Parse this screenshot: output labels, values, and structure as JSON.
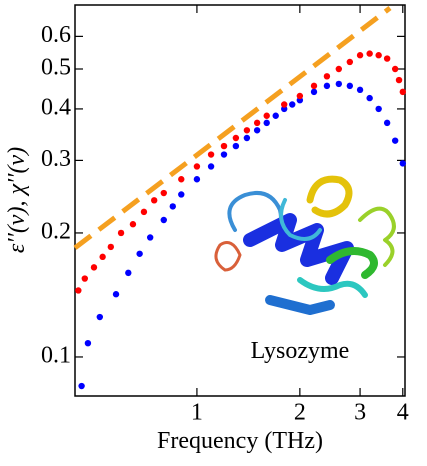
{
  "chart_data": {
    "type": "scatter",
    "x_label": "Frequency (THz)",
    "y_label": "ε′′(ν), χ′′(ν)",
    "annotation": "Lysozyme",
    "xscale": "log",
    "yscale": "log",
    "xlim": [
      0.44,
      4.06
    ],
    "ylim": [
      0.0804,
      0.715
    ],
    "xticks": [
      1,
      2,
      3,
      4
    ],
    "yticks": [
      0.1,
      0.2,
      0.3,
      0.4,
      0.5,
      0.6
    ],
    "series": [
      {
        "color": "#0000ff",
        "style": "points",
        "x": [
          0.46,
          0.48,
          0.52,
          0.58,
          0.63,
          0.68,
          0.73,
          0.8,
          0.85,
          0.9,
          1.0,
          1.1,
          1.2,
          1.3,
          1.4,
          1.5,
          1.6,
          1.7,
          1.8,
          1.9,
          2.0,
          2.2,
          2.4,
          2.6,
          2.8,
          3.0,
          3.2,
          3.4,
          3.6,
          3.8,
          4.0
        ],
        "values": [
          0.085,
          0.108,
          0.125,
          0.142,
          0.16,
          0.178,
          0.195,
          0.215,
          0.232,
          0.248,
          0.27,
          0.29,
          0.31,
          0.325,
          0.34,
          0.355,
          0.37,
          0.385,
          0.4,
          0.41,
          0.42,
          0.44,
          0.455,
          0.46,
          0.455,
          0.445,
          0.425,
          0.4,
          0.37,
          0.335,
          0.295
        ]
      },
      {
        "color": "#ff0000",
        "style": "points",
        "x": [
          0.45,
          0.47,
          0.5,
          0.53,
          0.56,
          0.6,
          0.65,
          0.7,
          0.75,
          0.8,
          0.9,
          1.0,
          1.1,
          1.2,
          1.3,
          1.4,
          1.5,
          1.6,
          1.8,
          2.0,
          2.2,
          2.4,
          2.6,
          2.8,
          3.0,
          3.2,
          3.4,
          3.6,
          3.8,
          3.9,
          4.0
        ],
        "values": [
          0.145,
          0.155,
          0.165,
          0.175,
          0.185,
          0.2,
          0.21,
          0.225,
          0.24,
          0.25,
          0.27,
          0.29,
          0.31,
          0.325,
          0.34,
          0.355,
          0.37,
          0.385,
          0.41,
          0.43,
          0.455,
          0.48,
          0.5,
          0.52,
          0.54,
          0.545,
          0.54,
          0.53,
          0.5,
          0.47,
          0.44
        ]
      },
      {
        "color": "#f5a020",
        "style": "dashed",
        "x": [
          0.44,
          3.67
        ],
        "values": [
          0.184,
          0.703
        ]
      }
    ]
  }
}
